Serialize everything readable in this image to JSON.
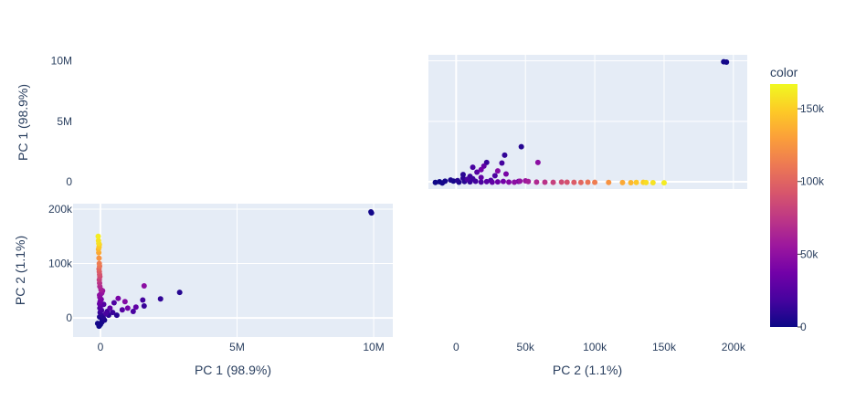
{
  "chart_data": {
    "type": "scatter",
    "description_free": true,
    "variables": [
      "PC 1 (98.9%)",
      "PC 2 (1.1%)"
    ],
    "color_variable": "color",
    "colorscale": [
      "#0d0887",
      "#46039f",
      "#7201a8",
      "#9c179e",
      "#bd3786",
      "#d8576b",
      "#ed7953",
      "#fb9f3a",
      "#fdca26",
      "#f0f921"
    ],
    "colorbar": {
      "title": "color",
      "range": [
        0,
        167000
      ],
      "ticks": [
        0,
        50000,
        100000,
        150000
      ],
      "tick_labels": [
        "0",
        "50k",
        "100k",
        "150k"
      ]
    },
    "panels": [
      {
        "id": "pc1-vs-pc1",
        "x_label": "",
        "y_label": "PC 1 (98.9%)",
        "x_range": [
          -20000,
          210000
        ],
        "y_range": [
          -600000,
          10500000
        ],
        "x_variable": "PC 2 (1.1%)",
        "y_variable": "PC 1 (98.9%)",
        "x_ticks": [],
        "x_tick_labels": [],
        "y_ticks": [
          0,
          5000000,
          10000000
        ],
        "y_tick_labels": [
          "0",
          "5M",
          "10M"
        ]
      },
      {
        "id": "pc2-vs-pc1",
        "x_label": "PC 1 (98.9%)",
        "y_label": "PC 2 (1.1%)",
        "x_range": [
          -1000000,
          10700000
        ],
        "y_range": [
          -35000,
          210000
        ],
        "x_variable": "PC 1 (98.9%)",
        "y_variable": "PC 2 (1.1%)",
        "x_ticks": [
          0,
          5000000,
          10000000
        ],
        "x_tick_labels": [
          "0",
          "5M",
          "10M"
        ],
        "y_ticks": [
          0,
          100000,
          200000
        ],
        "y_tick_labels": [
          "0",
          "100k",
          "200k"
        ]
      },
      {
        "id": "pc2-bottom-axis",
        "x_label": "PC 2 (1.1%)",
        "y_label": "",
        "x_range": [
          -20000,
          210000
        ],
        "x_ticks": [
          0,
          50000,
          100000,
          150000,
          200000
        ],
        "x_tick_labels": [
          "0",
          "50k",
          "100k",
          "150k",
          "200k"
        ]
      }
    ],
    "points": [
      {
        "pc1": 9900000,
        "pc2": 195000,
        "color": 2000
      },
      {
        "pc1": 9920000,
        "pc2": 193000,
        "color": 2000
      },
      {
        "pc1": 2900000,
        "pc2": 47000,
        "color": 8000
      },
      {
        "pc1": 2200000,
        "pc2": 35000,
        "color": 12000
      },
      {
        "pc1": 1600000,
        "pc2": 59000,
        "color": 48000
      },
      {
        "pc1": 1550000,
        "pc2": 33000,
        "color": 18000
      },
      {
        "pc1": 1600000,
        "pc2": 22000,
        "color": 14000
      },
      {
        "pc1": 1300000,
        "pc2": 20000,
        "color": 30000
      },
      {
        "pc1": 1200000,
        "pc2": 12000,
        "color": 20000
      },
      {
        "pc1": 1000000,
        "pc2": 18000,
        "color": 38000
      },
      {
        "pc1": 900000,
        "pc2": 30000,
        "color": 45000
      },
      {
        "pc1": 800000,
        "pc2": 15000,
        "color": 25000
      },
      {
        "pc1": 650000,
        "pc2": 36000,
        "color": 40000
      },
      {
        "pc1": 500000,
        "pc2": 28000,
        "color": 22000
      },
      {
        "pc1": 450000,
        "pc2": 10000,
        "color": 15000
      },
      {
        "pc1": 350000,
        "pc2": 18000,
        "color": 30000
      },
      {
        "pc1": 300000,
        "pc2": 5000,
        "color": 10000
      },
      {
        "pc1": 200000,
        "pc2": 8000,
        "color": 20000
      },
      {
        "pc1": 150000,
        "pc2": -4000,
        "color": 5000
      },
      {
        "pc1": 100000,
        "pc2": 1000,
        "color": 8000
      },
      {
        "pc1": 50000,
        "pc2": -8000,
        "color": 3000
      },
      {
        "pc1": 0,
        "pc2": -12000,
        "color": 1000
      },
      {
        "pc1": -50000,
        "pc2": -15000,
        "color": 500
      },
      {
        "pc1": -100000,
        "pc2": -10000,
        "color": 2000
      },
      {
        "pc1": -80000,
        "pc2": 150000,
        "color": 162000
      },
      {
        "pc1": -70000,
        "pc2": 142000,
        "color": 158000
      },
      {
        "pc1": -60000,
        "pc2": 137000,
        "color": 156000
      },
      {
        "pc1": -40000,
        "pc2": 135000,
        "color": 150000
      },
      {
        "pc1": -50000,
        "pc2": 130000,
        "color": 147000
      },
      {
        "pc1": -70000,
        "pc2": 126000,
        "color": 140000
      },
      {
        "pc1": -60000,
        "pc2": 120000,
        "color": 134000
      },
      {
        "pc1": -50000,
        "pc2": 110000,
        "color": 124000
      },
      {
        "pc1": -40000,
        "pc2": 100000,
        "color": 113000
      },
      {
        "pc1": -30000,
        "pc2": 95000,
        "color": 108000
      },
      {
        "pc1": -50000,
        "pc2": 90000,
        "color": 101000
      },
      {
        "pc1": -40000,
        "pc2": 85000,
        "color": 95000
      },
      {
        "pc1": -30000,
        "pc2": 80000,
        "color": 90000
      },
      {
        "pc1": -20000,
        "pc2": 76000,
        "color": 86000
      },
      {
        "pc1": -40000,
        "pc2": 70000,
        "color": 80000
      },
      {
        "pc1": -30000,
        "pc2": 64000,
        "color": 72000
      },
      {
        "pc1": -20000,
        "pc2": 58000,
        "color": 66000
      },
      {
        "pc1": 20000,
        "pc2": 52000,
        "color": 60000
      },
      {
        "pc1": 80000,
        "pc2": 50000,
        "color": 55000
      },
      {
        "pc1": 50000,
        "pc2": 46000,
        "color": 52000
      },
      {
        "pc1": -30000,
        "pc2": 42000,
        "color": 48000
      },
      {
        "pc1": -20000,
        "pc2": 38000,
        "color": 44000
      },
      {
        "pc1": 30000,
        "pc2": 34000,
        "color": 38000
      },
      {
        "pc1": -10000,
        "pc2": 30000,
        "color": 34000
      },
      {
        "pc1": -30000,
        "pc2": 26000,
        "color": 30000
      },
      {
        "pc1": 10000,
        "pc2": 22000,
        "color": 26000
      },
      {
        "pc1": -20000,
        "pc2": 18000,
        "color": 21000
      },
      {
        "pc1": 40000,
        "pc2": 14000,
        "color": 17000
      },
      {
        "pc1": -10000,
        "pc2": 10000,
        "color": 13000
      },
      {
        "pc1": 20000,
        "pc2": 6000,
        "color": 9000
      },
      {
        "pc1": -30000,
        "pc2": 2000,
        "color": 5000
      },
      {
        "pc1": 60000,
        "pc2": -2000,
        "color": 3000
      },
      {
        "pc1": 30000,
        "pc2": 45000,
        "color": 36000
      },
      {
        "pc1": 120000,
        "pc2": 25000,
        "color": 24000
      },
      {
        "pc1": 250000,
        "pc2": 12000,
        "color": 16000
      },
      {
        "pc1": 600000,
        "pc2": 5000,
        "color": 9000
      }
    ]
  }
}
